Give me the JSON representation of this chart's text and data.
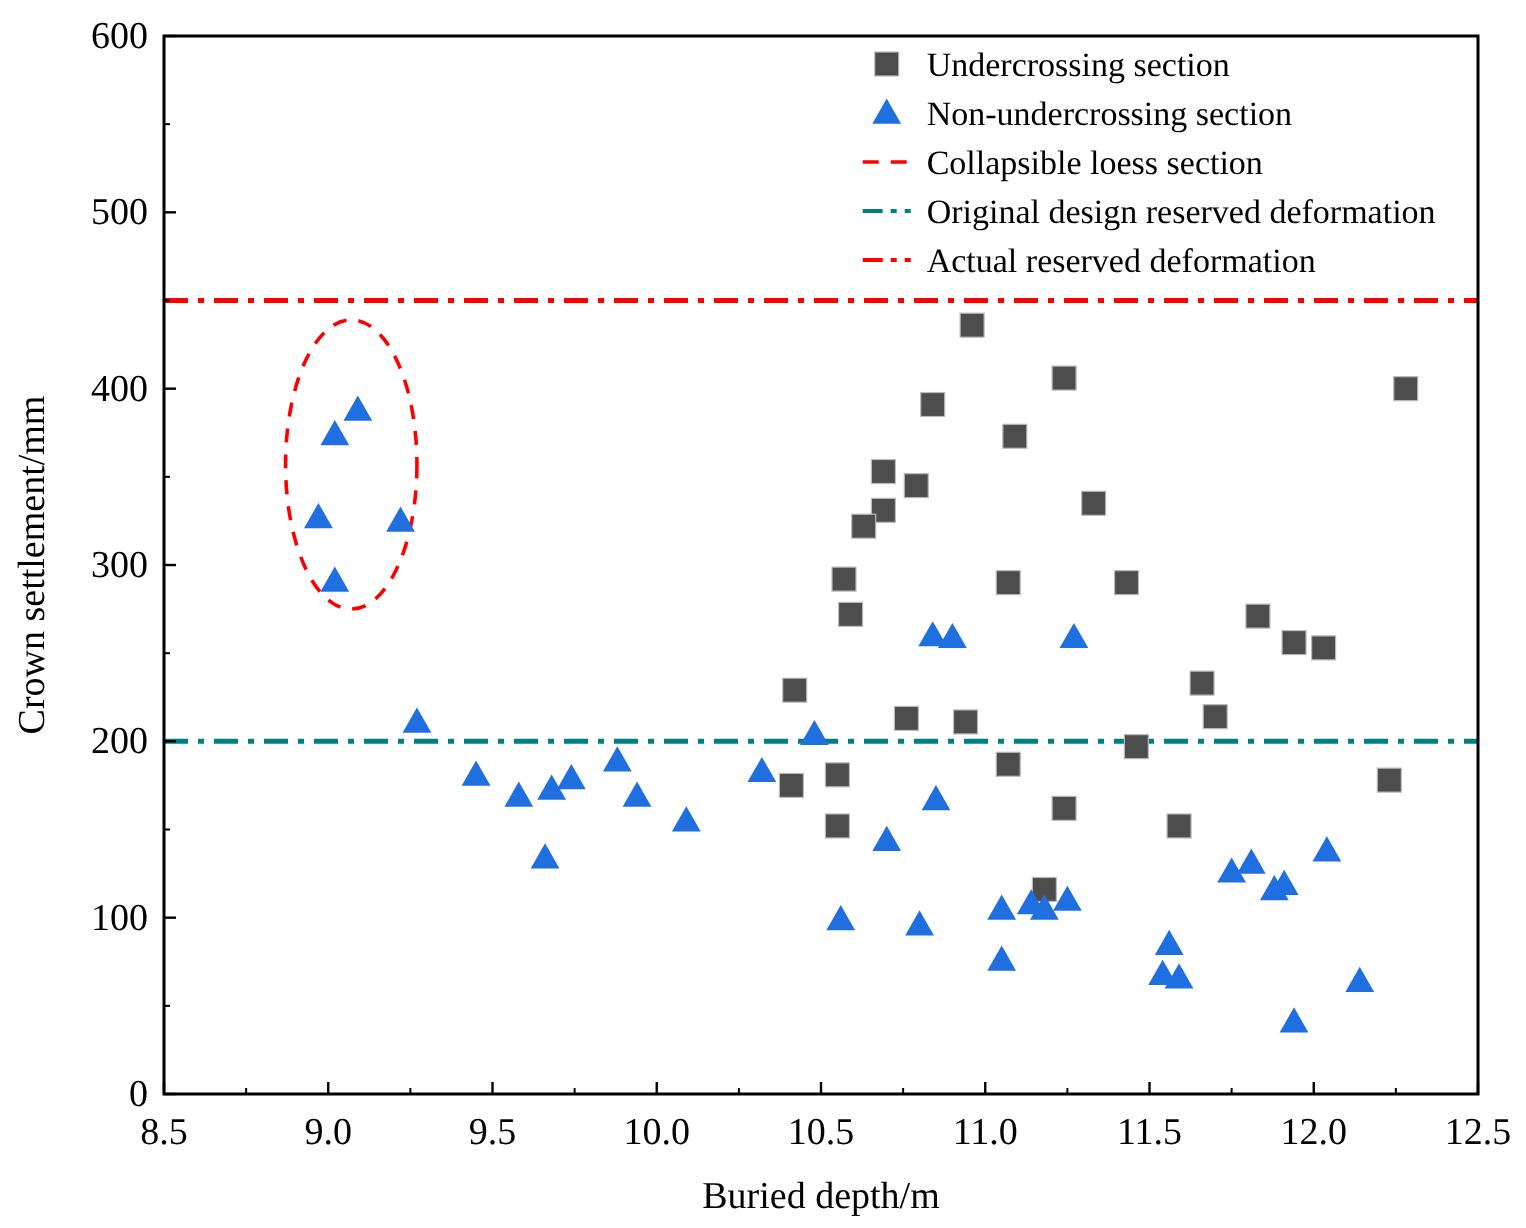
{
  "chart_data": {
    "type": "scatter",
    "xlabel": "Buried depth/m",
    "ylabel": "Crown settlement/mm",
    "xlim": [
      8.5,
      12.5
    ],
    "ylim": [
      0,
      600
    ],
    "xticks": [
      {
        "value": 8.5,
        "label": "8.5"
      },
      {
        "value": 9,
        "label": "9.0"
      },
      {
        "value": 9.5,
        "label": "9.5"
      },
      {
        "value": 10,
        "label": "10.0"
      },
      {
        "value": 10.5,
        "label": "10.5"
      },
      {
        "value": 11,
        "label": "11.0"
      },
      {
        "value": 11.5,
        "label": "11.5"
      },
      {
        "value": 12,
        "label": "12.0"
      },
      {
        "value": 12.5,
        "label": "12.5"
      }
    ],
    "yticks": [
      0,
      100,
      200,
      300,
      400,
      500,
      600
    ],
    "grid": false,
    "legend": "top right",
    "series": [
      {
        "name": "Undercrossing section",
        "color": "#4d4d4d",
        "marker": "square",
        "x": [
          10.42,
          10.41,
          10.96,
          11.24,
          10.84,
          11.09,
          10.69,
          10.79,
          10.69,
          10.63,
          11.33,
          10.57,
          11.07,
          11.43,
          10.59,
          10.76,
          10.94,
          11.46,
          10.55,
          11.07,
          10.55,
          11.24,
          11.18,
          12.28,
          11.83,
          11.94,
          12.03,
          11.66,
          11.7,
          12.23,
          11.59
        ],
        "values": [
          229,
          175,
          436,
          406,
          391,
          373,
          353,
          345,
          331,
          322,
          335,
          292,
          290,
          290,
          272,
          213,
          211,
          197,
          181,
          187,
          152,
          162,
          116,
          400,
          271,
          256,
          253,
          233,
          214,
          178,
          152
        ]
      },
      {
        "name": "Non-undercrossing section",
        "color": "#1f6fe0",
        "marker": "triangle",
        "x": [
          9.09,
          9.02,
          8.97,
          9.22,
          9.02,
          9.27,
          9.45,
          9.58,
          9.68,
          9.74,
          9.88,
          9.94,
          9.66,
          10.09,
          10.32,
          10.84,
          10.9,
          11.27,
          10.48,
          10.85,
          10.7,
          10.56,
          10.8,
          11.05,
          11.14,
          11.18,
          11.25,
          11.05,
          12.04,
          11.75,
          11.81,
          11.88,
          11.91,
          11.56,
          11.54,
          11.59,
          12.14,
          11.94
        ],
        "values": [
          388,
          374,
          327,
          325,
          291,
          211,
          181,
          169,
          173,
          179,
          189,
          169,
          134,
          155,
          183,
          260,
          259,
          259,
          204,
          167,
          144,
          99,
          96,
          105,
          108,
          105,
          110,
          76,
          138,
          126,
          131,
          116,
          119,
          85,
          68,
          66,
          64,
          41
        ]
      }
    ],
    "ref_lines": [
      {
        "axis": "y",
        "value": 200,
        "label": "Original design reserved deformation",
        "color": "#008080",
        "line_style": "dashdot"
      },
      {
        "axis": "y",
        "value": 450,
        "label": "Actual reserved deformation",
        "color": "#ff0000",
        "line_style": "dashdot"
      }
    ],
    "annotations": [
      "Collapsible loess section"
    ]
  }
}
